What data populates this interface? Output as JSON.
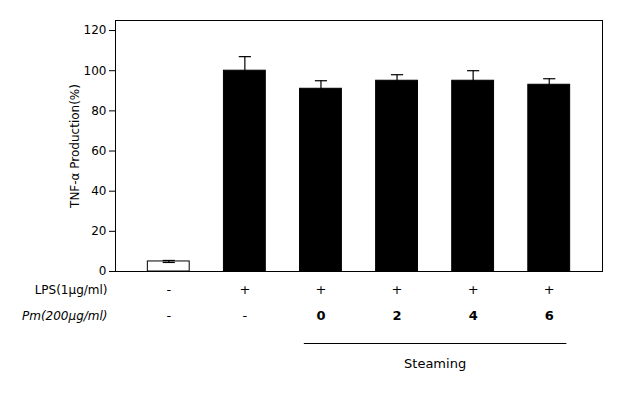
{
  "chart_data": {
    "type": "bar",
    "categories": [
      null,
      null,
      null,
      null,
      null,
      null
    ],
    "values": [
      5,
      100,
      91,
      95,
      95,
      93
    ],
    "errors": [
      0.5,
      7,
      4,
      3,
      5,
      3
    ],
    "colors": [
      "white",
      "black",
      "black",
      "black",
      "black",
      "black"
    ],
    "ylabel": "TNF-α Production(%)",
    "ylim": [
      0,
      125
    ],
    "yticks": [
      0,
      20,
      40,
      60,
      80,
      100,
      120
    ],
    "tick_labels": "y",
    "grid": false,
    "table": [
      {
        "label": "LPS(1μg/ml)",
        "cells": [
          "-",
          "+",
          "+",
          "+",
          "+",
          "+"
        ]
      },
      {
        "label": "Pm(200μg/ml)",
        "cells": [
          "-",
          "-",
          "0",
          "2",
          "4",
          "6"
        ]
      }
    ],
    "bracket": {
      "text": "Steaming",
      "bars": [
        false,
        false,
        true,
        true,
        true,
        true
      ]
    }
  }
}
